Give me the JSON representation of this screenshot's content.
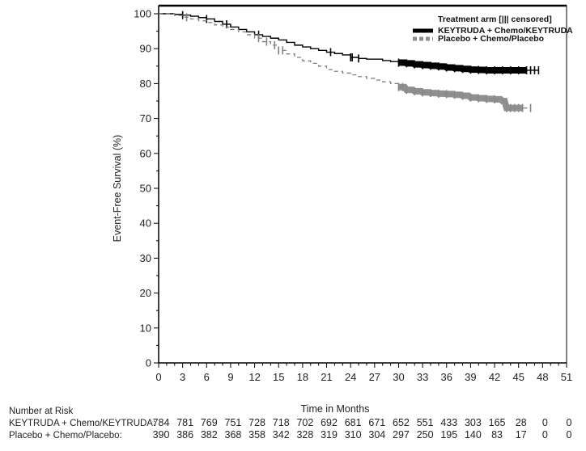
{
  "chart_data": {
    "type": "line",
    "title": "",
    "xlabel": "Time in Months",
    "ylabel": "Event-Free Survival (%)",
    "xlim": [
      0,
      51
    ],
    "ylim": [
      0,
      100
    ],
    "x_ticks": [
      0,
      3,
      6,
      9,
      12,
      15,
      18,
      21,
      24,
      27,
      30,
      33,
      36,
      39,
      42,
      45,
      48,
      51
    ],
    "y_ticks": [
      0,
      10,
      20,
      30,
      40,
      50,
      60,
      70,
      80,
      90,
      100
    ],
    "x_minor_step": 1,
    "y_minor_step": 5,
    "grid": false,
    "legend": {
      "title": "Treatment arm [||| censored]",
      "position": "top-right",
      "entries": [
        {
          "label": "KEYTRUDA + Chemo/KEYTRUDA",
          "style": "solid",
          "color": "#000000"
        },
        {
          "label": "Placebo + Chemo/Placebo",
          "style": "dashed",
          "color": "#808080"
        }
      ]
    },
    "series": [
      {
        "name": "KEYTRUDA + Chemo/KEYTRUDA",
        "color": "#000000",
        "style": "solid",
        "x": [
          0,
          2,
          3,
          4,
          5,
          6,
          7,
          8,
          9,
          10,
          11,
          12,
          13,
          14,
          15,
          16,
          17,
          18,
          19,
          20,
          21,
          22,
          23,
          24,
          25,
          26,
          27,
          28,
          29,
          30,
          31,
          32,
          33,
          34,
          35,
          36,
          37,
          38,
          39,
          40,
          41,
          42,
          43,
          44,
          45,
          46,
          47.5
        ],
        "y": [
          100,
          99.8,
          99.6,
          99.3,
          98.9,
          98.5,
          97.8,
          97.0,
          96.2,
          95.5,
          94.8,
          94.0,
          93.5,
          93.0,
          92.5,
          91.8,
          91.0,
          90.5,
          90.0,
          89.5,
          89.0,
          88.6,
          88.2,
          87.5,
          87.2,
          87.0,
          87.0,
          86.6,
          86.3,
          86.0,
          85.8,
          85.5,
          85.3,
          85.1,
          84.9,
          84.6,
          84.4,
          84.2,
          84.0,
          83.9,
          83.8,
          83.8,
          83.8,
          83.8,
          83.8,
          83.8,
          83.8
        ],
        "censored_x": [
          3,
          6,
          8.5,
          12.5,
          21.5,
          24,
          24.2,
          25,
          30,
          31,
          32,
          33,
          34,
          35,
          36,
          37,
          38,
          39,
          40,
          41,
          42,
          43,
          44,
          45,
          46,
          46.5,
          47,
          47.5
        ]
      },
      {
        "name": "Placebo + Chemo/Placebo",
        "color": "#808080",
        "style": "dashed",
        "x": [
          0,
          2,
          3,
          4,
          5,
          6,
          7,
          8,
          9,
          10,
          11,
          12,
          13,
          14,
          15,
          16,
          17,
          18,
          19,
          20,
          21,
          22,
          23,
          24,
          25,
          26,
          27,
          28,
          29,
          30,
          31,
          32,
          33,
          34,
          35,
          36,
          37,
          38,
          39,
          40,
          41,
          42,
          43,
          43.5,
          44,
          45,
          46.5
        ],
        "y": [
          100,
          99.5,
          99.0,
          98.5,
          98.0,
          97.5,
          96.8,
          96.2,
          95.5,
          94.8,
          94.0,
          93.0,
          92.0,
          91.0,
          89.5,
          88.5,
          87.5,
          86.5,
          85.8,
          85.0,
          84.0,
          83.5,
          83.0,
          82.5,
          82.0,
          81.5,
          81.0,
          80.5,
          80.0,
          79.0,
          78.2,
          77.8,
          77.5,
          77.3,
          77.1,
          77.0,
          76.8,
          76.5,
          76.0,
          75.8,
          75.6,
          75.5,
          75.0,
          73.0,
          73.0,
          73.0,
          73.0
        ],
        "censored_x": [
          3.5,
          12.5,
          13.5,
          14.5,
          15,
          15.5,
          30,
          30.5,
          31,
          32,
          33,
          34,
          35,
          36,
          37,
          38,
          39,
          40,
          41,
          42,
          43.5,
          44,
          44.5,
          45,
          45.5,
          46.5
        ]
      }
    ],
    "number_at_risk": {
      "label": "Number at Risk",
      "times": [
        0,
        3,
        6,
        9,
        12,
        15,
        18,
        21,
        24,
        27,
        30,
        33,
        36,
        39,
        42,
        45,
        48,
        51
      ],
      "rows": [
        {
          "label": "KEYTRUDA + Chemo/KEYTRUDA:",
          "values": [
            784,
            781,
            769,
            751,
            728,
            718,
            702,
            692,
            681,
            671,
            652,
            551,
            433,
            303,
            165,
            28,
            0,
            0
          ]
        },
        {
          "label": "Placebo + Chemo/Placebo:",
          "values": [
            390,
            386,
            382,
            368,
            358,
            342,
            328,
            319,
            310,
            304,
            297,
            250,
            195,
            140,
            83,
            17,
            0,
            0
          ]
        }
      ]
    }
  }
}
